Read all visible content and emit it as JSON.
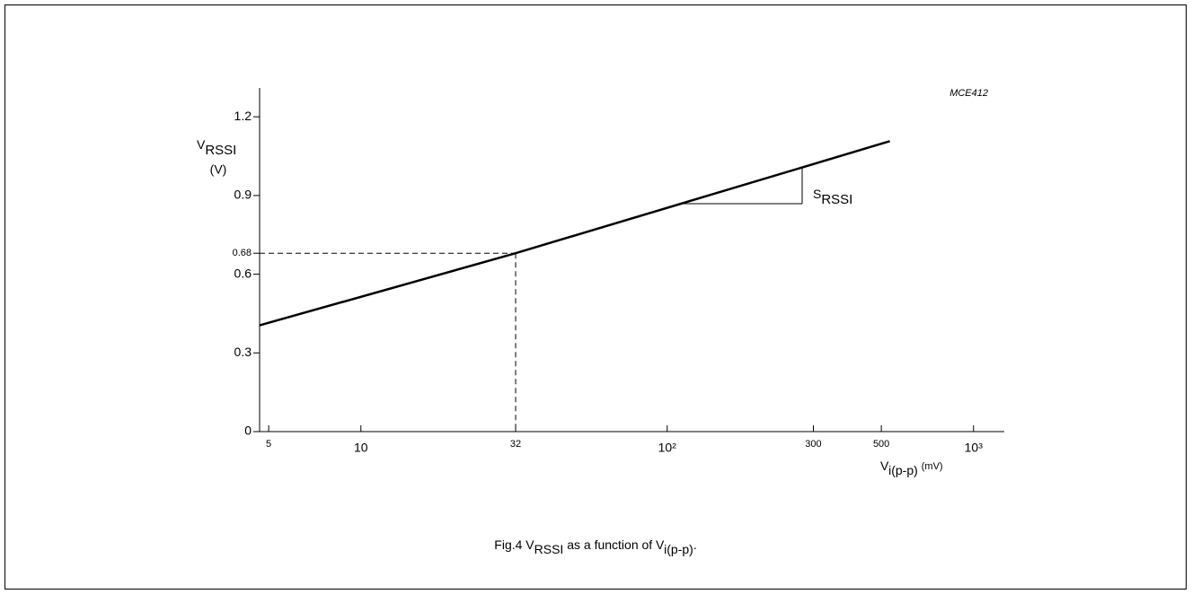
{
  "chart_data": {
    "type": "line",
    "id_label": "MCE412",
    "ylabel": {
      "main": "V",
      "sub": "RSSI",
      "unit": "(V)"
    },
    "xlabel": {
      "main": "V",
      "sub": "i(p-p)",
      "unit": "(mV)"
    },
    "annotation": {
      "main": "S",
      "sub": "RSSI"
    },
    "caption": [
      "Fig.4  V",
      "RSSI",
      " as a function of V",
      "i(p-p)",
      "."
    ],
    "log_x": true,
    "xlim": [
      4.67,
      1260
    ],
    "ylim": [
      0,
      1.31
    ],
    "xticks": [
      5,
      10,
      32,
      {
        "value": 100,
        "label": "10²"
      },
      300,
      500,
      {
        "value": 1000,
        "label": "10³"
      }
    ],
    "yticks": [
      0,
      0.3,
      0.6,
      0.68,
      0.9,
      1.2
    ],
    "reference": {
      "x_tick": 2,
      "y_tick": 3
    },
    "series": [
      {
        "name": "V_RSSI",
        "color": "#000000",
        "x": [
          4.67,
          32,
          533
        ],
        "values": [
          0.405,
          0.68,
          1.107
        ]
      }
    ]
  }
}
